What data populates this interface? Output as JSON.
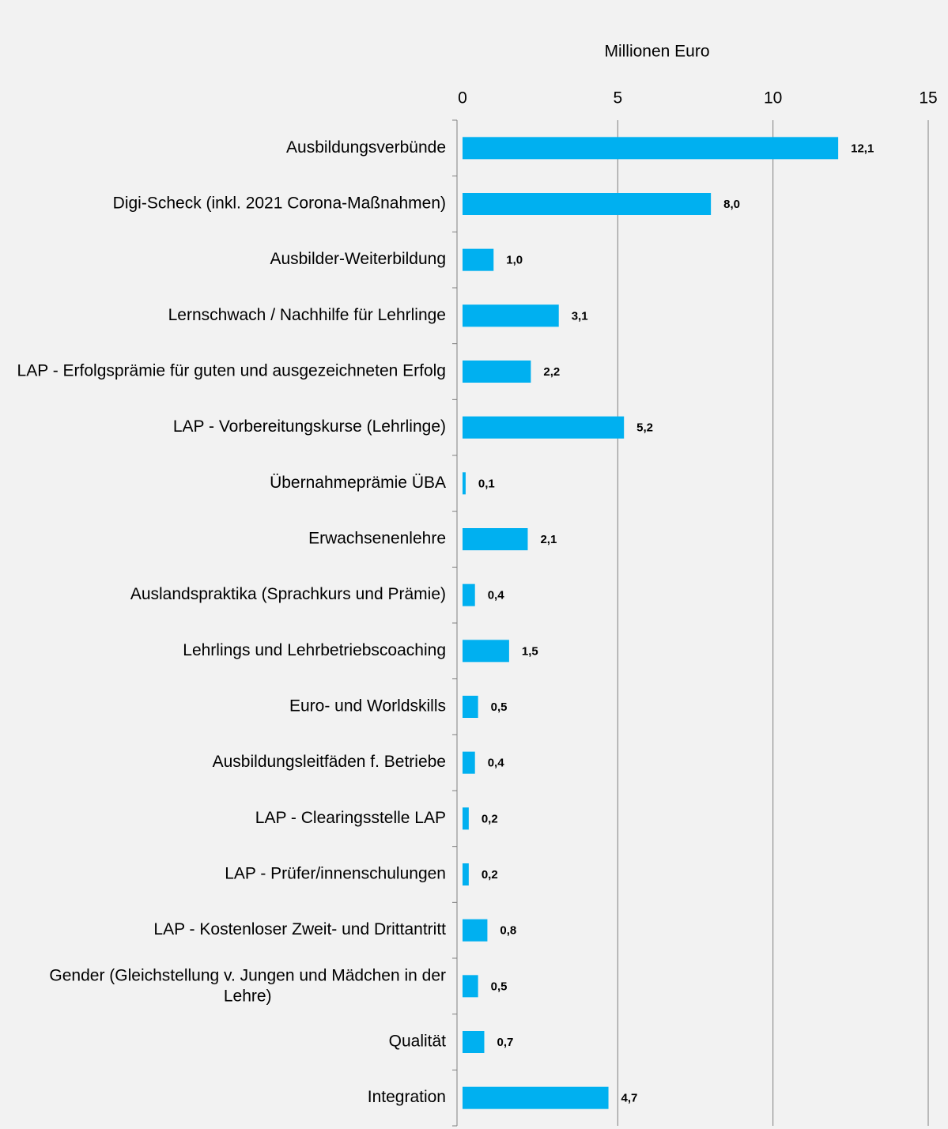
{
  "chart_data": {
    "type": "bar",
    "orientation": "horizontal",
    "x_axis_label": "Millionen Euro",
    "categories": [
      "Ausbildungsverbünde",
      "Digi-Scheck (inkl. 2021 Corona-Maßnahmen)",
      "Ausbilder-Weiterbildung",
      "Lernschwach / Nachhilfe für Lehrlinge",
      "LAP - Erfolgsprämie für guten und ausgezeichneten Erfolg",
      "LAP - Vorbereitungskurse (Lehrlinge)",
      "Übernahmeprämie ÜBA",
      "Erwachsenenlehre",
      "Auslandspraktika (Sprachkurs und Prämie)",
      "Lehrlings und Lehrbetriebscoaching",
      "Euro- und Worldskills",
      "Ausbildungsleitfäden f. Betriebe",
      "LAP - Clearingsstelle LAP",
      "LAP - Prüfer/innenschulungen",
      "LAP - Kostenloser Zweit- und Drittantritt",
      "Gender (Gleichstellung v. Jungen und Mädchen in der Lehre)",
      "Qualität",
      "Integration"
    ],
    "values": [
      12.1,
      8.0,
      1.0,
      3.1,
      2.2,
      5.2,
      0.1,
      2.1,
      0.4,
      1.5,
      0.5,
      0.4,
      0.2,
      0.2,
      0.8,
      0.5,
      0.7,
      4.7
    ],
    "value_labels": [
      "12,1",
      "8,0",
      "1,0",
      "3,1",
      "2,2",
      "5,2",
      "0,1",
      "2,1",
      "0,4",
      "1,5",
      "0,5",
      "0,4",
      "0,2",
      "0,2",
      "0,8",
      "0,5",
      "0,7",
      "4,7"
    ],
    "color": "#00b0f0",
    "xlim": [
      0,
      15
    ],
    "xticks": [
      0,
      5,
      10,
      15
    ],
    "grid": true
  }
}
